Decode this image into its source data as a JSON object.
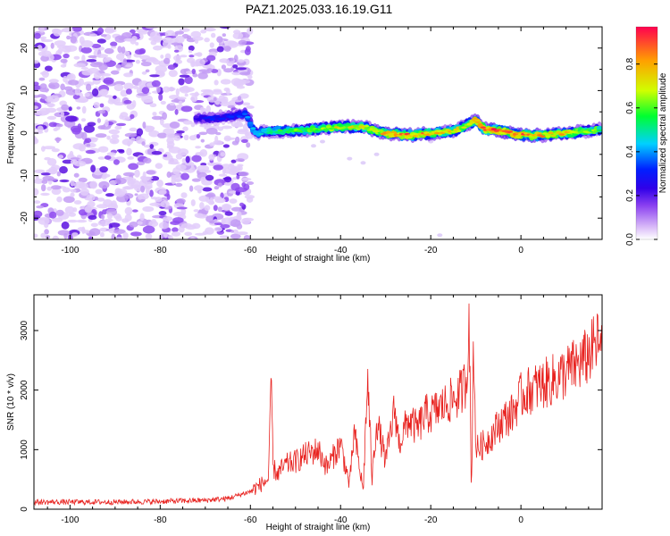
{
  "title": "PAZ1.2025.033.16.19.G11",
  "chart_data": [
    {
      "type": "heatmap",
      "xlabel": "Height of straight line (km)",
      "ylabel": "Frequency (Hz)",
      "xlim": [
        -108,
        18
      ],
      "ylim": [
        -25,
        25
      ],
      "xticks": [
        "-100",
        "-80",
        "-60",
        "-40",
        "-20",
        "0"
      ],
      "xtick_values": [
        -100,
        -80,
        -60,
        -40,
        -20,
        0
      ],
      "yticks": [
        "20",
        "10",
        "0",
        "-10",
        "-20"
      ],
      "ytick_values": [
        20,
        10,
        0,
        -10,
        -20
      ],
      "colorbar": {
        "label": "Normalized spectral amplitude",
        "ticks": [
          "0.0",
          "0.2",
          "0.4",
          "0.6",
          "0.8"
        ],
        "tick_values": [
          0.0,
          0.2,
          0.4,
          0.6,
          0.8
        ],
        "range": [
          0,
          0.97
        ],
        "colormap": [
          "#ffffff",
          "#d8b8f8",
          "#9050f0",
          "#4a00e0",
          "#0000ff",
          "#00c8ff",
          "#00ff40",
          "#c8ff00",
          "#ffa000",
          "#ff0040"
        ]
      },
      "ridge": {
        "x": [
          -72,
          -68,
          -64,
          -61,
          -59,
          -55,
          -50,
          -45,
          -40,
          -35,
          -30,
          -25,
          -20,
          -15,
          -12,
          -10,
          -8,
          -5,
          0,
          5,
          10,
          15,
          18
        ],
        "y": [
          3.5,
          3.5,
          4,
          4.5,
          0,
          0.5,
          0.5,
          1,
          1.5,
          1.5,
          0,
          -0.5,
          0,
          0.5,
          2,
          3,
          1,
          0.5,
          -0.5,
          -0.5,
          0,
          0.5,
          1
        ],
        "amplitude": [
          0.25,
          0.3,
          0.3,
          0.35,
          0.45,
          0.55,
          0.6,
          0.65,
          0.7,
          0.7,
          0.8,
          0.85,
          0.8,
          0.75,
          0.7,
          0.85,
          0.95,
          0.9,
          0.85,
          0.8,
          0.75,
          0.65,
          0.6
        ]
      },
      "noise_region": {
        "x": [
          -108,
          -60
        ],
        "y": [
          -25,
          25
        ]
      }
    },
    {
      "type": "line",
      "xlabel": "Height of straight line (km)",
      "ylabel": "SNR (10 * v/v)",
      "xlim": [
        -108,
        18
      ],
      "ylim": [
        0,
        3600
      ],
      "xticks": [
        "-100",
        "-80",
        "-60",
        "-40",
        "-20",
        "0"
      ],
      "xtick_values": [
        -100,
        -80,
        -60,
        -40,
        -20,
        0
      ],
      "yticks": [
        "0",
        "1000",
        "2000",
        "3000"
      ],
      "ytick_values": [
        0,
        1000,
        2000,
        3000
      ],
      "color": "#e8221f",
      "series": [
        {
          "x": [
            -108,
            -100,
            -90,
            -80,
            -70,
            -65,
            -62,
            -60,
            -58,
            -56,
            -55.3,
            -55,
            -54,
            -52,
            -50,
            -48,
            -45,
            -43,
            -40,
            -38,
            -37,
            -35,
            -34,
            -33,
            -32,
            -30,
            -28,
            -27,
            -25,
            -23,
            -21,
            -20,
            -18,
            -16,
            -14,
            -13,
            -12,
            -11.5,
            -11,
            -10.5,
            -10,
            -8,
            -6,
            -5,
            -4,
            -2,
            0,
            2,
            5,
            8,
            10,
            12,
            14,
            15,
            16,
            17,
            18
          ],
          "y": [
            120,
            120,
            120,
            130,
            150,
            180,
            250,
            300,
            400,
            500,
            2200,
            700,
            600,
            750,
            800,
            900,
            1000,
            700,
            1100,
            400,
            1300,
            300,
            2200,
            500,
            1500,
            800,
            1700,
            1100,
            1500,
            1350,
            1600,
            1600,
            1700,
            1800,
            1900,
            2000,
            2200,
            3500,
            150,
            2900,
            1000,
            1100,
            1300,
            1400,
            1500,
            1600,
            1900,
            2000,
            2100,
            2200,
            2300,
            2400,
            2500,
            2600,
            2700,
            2800,
            2600
          ]
        }
      ]
    }
  ]
}
